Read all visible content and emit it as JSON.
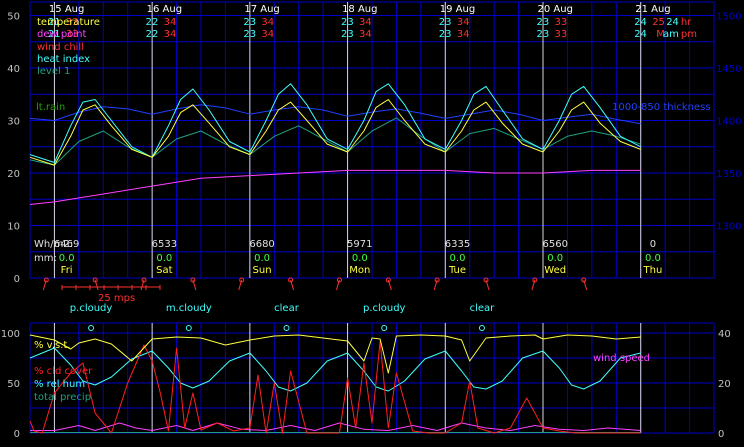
{
  "colors": {
    "background": "#000000",
    "grid": "#0000c8",
    "axis_text": "#c0c0c0",
    "white": "#ffffff",
    "temperature": "#ffff40",
    "dew_point": "#ff40ff",
    "wind_chill": "#ff3030",
    "heat_index": "#40ffff",
    "level1": "#20a080",
    "thickness": "#2040ff",
    "lt_rain": "#20a000",
    "energy": "#e0e0e0",
    "rain_mm": "#40ff40",
    "weekday": "#ffff40",
    "wind": "#ff3030",
    "sky": "#40ffff",
    "vst": "#ffff40",
    "cld": "#ff2020",
    "rh": "#40ffff",
    "precip": "#20a080",
    "wind_speed": "#ff40ff"
  },
  "chart_data": [
    {
      "type": "line",
      "title": "",
      "dates": [
        "15 Aug",
        "16 Aug",
        "17 Aug",
        "18 Aug",
        "19 Aug",
        "20 Aug",
        "21 Aug"
      ],
      "date_x_hours": [
        3,
        27,
        51,
        75,
        99,
        123,
        147
      ],
      "midnight_hours": [
        0,
        24,
        48,
        72,
        96,
        120,
        144
      ],
      "x_range_hours": [
        -6,
        162
      ],
      "y_left_ticks": [
        "0",
        "10",
        "20",
        "30",
        "40",
        "50"
      ],
      "y_left_range": [
        0,
        50
      ],
      "y_right_ticks": [
        "1300",
        "1350",
        "1400",
        "1450",
        "1500"
      ],
      "y_right_range": [
        1250,
        1500
      ],
      "minmax_rows": [
        [
          {
            "lo": "21",
            "hi": "33"
          },
          {
            "lo": "22",
            "hi": "34"
          },
          {
            "lo": "23",
            "hi": "34"
          },
          {
            "lo": "23",
            "hi": "34"
          },
          {
            "lo": "23",
            "hi": "34"
          },
          {
            "lo": "23",
            "hi": "33"
          },
          {
            "lo": "24",
            "hi": "25",
            "unit": "24 hr"
          }
        ],
        [
          {
            "lo": "21",
            "hi": "33"
          },
          {
            "lo": "22",
            "hi": "34"
          },
          {
            "lo": "23",
            "hi": "34"
          },
          {
            "lo": "23",
            "hi": "34"
          },
          {
            "lo": "23",
            "hi": "34"
          },
          {
            "lo": "23",
            "hi": "33"
          },
          {
            "lo": "24",
            "hi": "M",
            "unit": "am pm"
          }
        ]
      ],
      "legend": [
        "temperature",
        "dew point",
        "wind chill",
        "heat index",
        "level 1"
      ],
      "side_labels": {
        "lt_rain": "lt.rain",
        "thickness": "1000-850 thickness"
      },
      "energy_label": "Wh/m2:",
      "energy": [
        "6469",
        "6533",
        "6680",
        "5971",
        "6335",
        "6560",
        "0"
      ],
      "rain_label": "mm:",
      "rain": [
        "0.0",
        "0.0",
        "0.0",
        "0.0",
        "0.0",
        "0.0",
        "0.0"
      ],
      "weekdays": [
        "Fri",
        "Sat",
        "Sun",
        "Mon",
        "Tue",
        "Wed",
        "Thu"
      ],
      "series": {
        "temperature": {
          "t": [
            -6,
            0,
            4,
            7,
            10,
            14,
            19,
            24,
            28,
            31,
            34,
            38,
            43,
            48,
            52,
            55,
            58,
            62,
            67,
            72,
            76,
            79,
            82,
            86,
            91,
            96,
            100,
            103,
            106,
            110,
            115,
            120,
            124,
            127,
            130,
            134,
            139,
            144
          ],
          "v": [
            23,
            21.5,
            27,
            32,
            33,
            29,
            24.5,
            23,
            27,
            31.5,
            33,
            29.5,
            25,
            23.5,
            28,
            32,
            33.5,
            30,
            25.5,
            24,
            28,
            32.5,
            34,
            30,
            25.5,
            24,
            28,
            32,
            33.5,
            29.5,
            25.5,
            24,
            28,
            32,
            33.5,
            29.5,
            26,
            24.5
          ]
        },
        "heat_index": {
          "t": [
            -6,
            0,
            4,
            7,
            10,
            14,
            19,
            24,
            28,
            31,
            34,
            38,
            43,
            48,
            52,
            55,
            58,
            62,
            67,
            72,
            76,
            79,
            82,
            86,
            91,
            96,
            100,
            103,
            106,
            110,
            115,
            120,
            124,
            127,
            130,
            134,
            139,
            144
          ],
          "v": [
            23.5,
            22,
            29,
            33.5,
            34,
            30,
            25,
            23,
            29,
            34,
            36,
            32,
            26,
            24,
            30,
            35,
            37,
            33,
            26.5,
            24.5,
            30,
            35.5,
            37,
            33,
            26.5,
            24.5,
            30,
            35,
            36.5,
            32,
            26.5,
            24.5,
            30,
            35,
            36.5,
            32.5,
            27,
            25
          ]
        },
        "level1": {
          "t": [
            -6,
            0,
            6,
            12,
            18,
            24,
            30,
            36,
            42,
            48,
            54,
            60,
            66,
            72,
            78,
            84,
            90,
            96,
            102,
            108,
            114,
            120,
            126,
            132,
            138,
            144
          ],
          "v": [
            22.5,
            21.5,
            26,
            28,
            25,
            23,
            26.5,
            28,
            25.5,
            23.5,
            27,
            29,
            26.5,
            24,
            28,
            30.5,
            27,
            24,
            27.5,
            28.5,
            26.5,
            24.5,
            27,
            28,
            27,
            25.5
          ]
        },
        "dew_point": {
          "t": [
            -6,
            0,
            12,
            24,
            36,
            48,
            60,
            72,
            84,
            96,
            108,
            120,
            132,
            144
          ],
          "v": [
            14,
            14.5,
            16,
            17.5,
            19,
            19.5,
            20,
            20.5,
            20.5,
            20.5,
            20,
            20,
            20.5,
            20.5
          ]
        },
        "thickness": {
          "t": [
            -6,
            0,
            6,
            12,
            18,
            24,
            30,
            36,
            42,
            48,
            54,
            60,
            66,
            72,
            78,
            84,
            90,
            96,
            102,
            108,
            114,
            120,
            126,
            132,
            138,
            144
          ],
          "v": [
            1402,
            1400,
            1408,
            1413,
            1411,
            1406,
            1411,
            1415,
            1412,
            1406,
            1410,
            1413,
            1410,
            1404,
            1408,
            1411,
            1407,
            1402,
            1406,
            1410,
            1406,
            1400,
            1403,
            1406,
            1401,
            1397
          ]
        }
      }
    },
    {
      "type": "line",
      "title": "",
      "wind_label": "25 mps",
      "wind_marks_hours": [
        -2,
        10,
        22,
        34,
        46,
        58,
        70,
        82,
        94,
        106,
        118,
        130
      ],
      "sky_labels": [
        {
          "t": 9,
          "label": "p.cloudy"
        },
        {
          "t": 33,
          "label": "m.cloudy"
        },
        {
          "t": 57,
          "label": "clear"
        },
        {
          "t": 81,
          "label": "p.cloudy"
        },
        {
          "t": 105,
          "label": "clear"
        }
      ],
      "sky_marks_hours": [
        9,
        33,
        57,
        81,
        105
      ],
      "y_left_ticks": [
        "0",
        "50",
        "100"
      ],
      "y_left_range": [
        0,
        100
      ],
      "y_right_ticks": [
        "0",
        "20",
        "40"
      ],
      "y_right_range": [
        0,
        40
      ],
      "legend": [
        "% v.s.t.",
        "% cld cover",
        "% rel hum",
        "total precip"
      ],
      "side_label": "wind speed",
      "series": {
        "vst": {
          "t": [
            -6,
            0,
            4,
            6,
            10,
            14,
            19,
            24,
            30,
            36,
            42,
            48,
            54,
            60,
            66,
            72,
            76,
            78,
            80,
            82,
            84,
            90,
            96,
            100,
            102,
            106,
            112,
            118,
            120,
            126,
            132,
            138,
            144
          ],
          "v": [
            98,
            93,
            84,
            90,
            94,
            89,
            72,
            94,
            96,
            95,
            88,
            93,
            97,
            98,
            95,
            92,
            72,
            95,
            94,
            60,
            97,
            98,
            97,
            93,
            72,
            95,
            97,
            98,
            94,
            98,
            97,
            94,
            96
          ]
        },
        "cld": {
          "t": [
            -6,
            -5,
            -3,
            0,
            4,
            7,
            10,
            14,
            18,
            22,
            24,
            26,
            28,
            30,
            32,
            34,
            36,
            40,
            44,
            48,
            50,
            52,
            54,
            56,
            58,
            62,
            66,
            70,
            72,
            74,
            76,
            78,
            80,
            82,
            84,
            88,
            92,
            96,
            100,
            102,
            104,
            108,
            112,
            114,
            116,
            118,
            120,
            124,
            128,
            132,
            136,
            140,
            144
          ],
          "v": [
            12,
            2,
            0,
            40,
            60,
            70,
            20,
            0,
            50,
            88,
            72,
            40,
            2,
            85,
            5,
            40,
            3,
            10,
            2,
            5,
            58,
            0,
            50,
            0,
            62,
            0,
            0,
            0,
            55,
            5,
            70,
            10,
            92,
            5,
            60,
            2,
            0,
            0,
            10,
            52,
            5,
            0,
            5,
            20,
            35,
            20,
            5,
            2,
            0,
            0,
            0,
            0,
            0
          ]
        },
        "rh": {
          "t": [
            -6,
            0,
            4,
            7,
            10,
            14,
            19,
            24,
            28,
            31,
            34,
            38,
            43,
            48,
            52,
            55,
            58,
            62,
            67,
            72,
            76,
            79,
            82,
            86,
            91,
            96,
            100,
            103,
            106,
            110,
            115,
            120,
            124,
            127,
            130,
            134,
            139,
            144
          ],
          "v": [
            75,
            85,
            68,
            52,
            48,
            56,
            74,
            82,
            65,
            50,
            45,
            52,
            72,
            80,
            62,
            46,
            42,
            50,
            72,
            80,
            62,
            46,
            42,
            52,
            74,
            82,
            62,
            46,
            44,
            52,
            75,
            82,
            65,
            48,
            44,
            52,
            75,
            80
          ]
        },
        "precip": {
          "t": [
            -6,
            144
          ],
          "v": [
            0.5,
            0.5
          ]
        },
        "wind": {
          "t": [
            -6,
            0,
            6,
            10,
            16,
            20,
            24,
            30,
            34,
            40,
            46,
            52,
            58,
            64,
            70,
            76,
            82,
            88,
            94,
            100,
            106,
            112,
            118,
            124,
            130,
            136,
            144
          ],
          "v": [
            1,
            1,
            3,
            1,
            4,
            2,
            1,
            3,
            1,
            4,
            1.5,
            1,
            3,
            1,
            4,
            1.5,
            1,
            3,
            1,
            4,
            2,
            1,
            3,
            1.5,
            1,
            2,
            1
          ]
        }
      }
    }
  ]
}
